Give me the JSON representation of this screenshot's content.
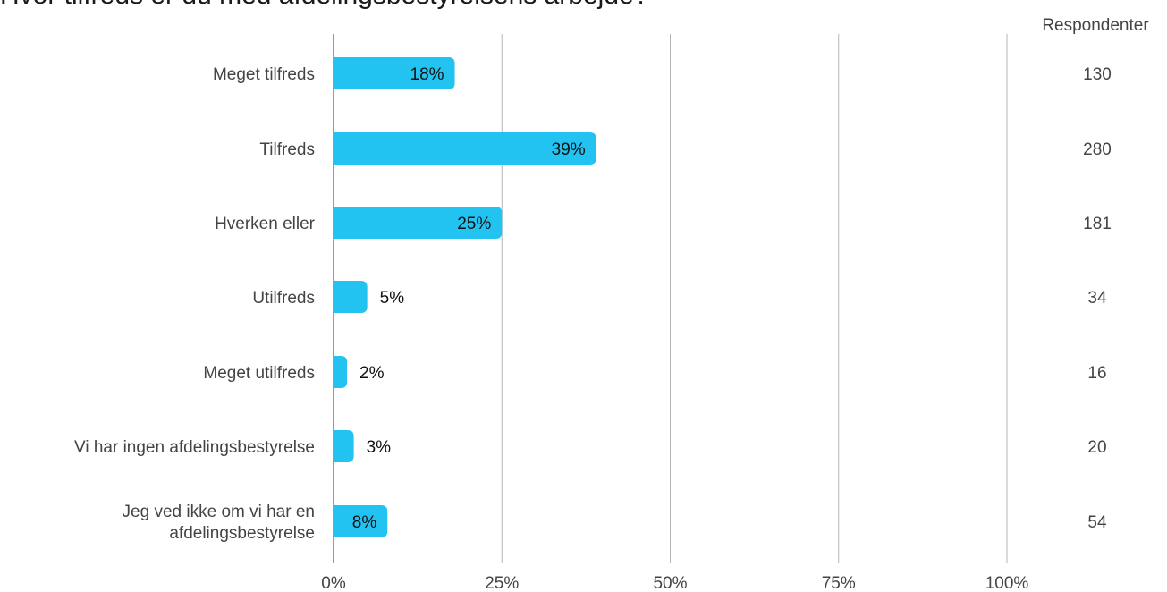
{
  "chart_data": {
    "type": "bar",
    "orientation": "horizontal",
    "title": "Hvor tilfreds er du med afdelingsbestyrelsens arbejde?",
    "categories": [
      [
        "Meget tilfreds"
      ],
      [
        "Tilfreds"
      ],
      [
        "Hverken eller"
      ],
      [
        "Utilfreds"
      ],
      [
        "Meget utilfreds"
      ],
      [
        "Vi har ingen afdelingsbestyrelse"
      ],
      [
        "Jeg ved ikke om vi har en",
        "afdelingsbestyrelse"
      ]
    ],
    "values": [
      18,
      39,
      25,
      5,
      2,
      3,
      8
    ],
    "value_labels": [
      "18%",
      "39%",
      "25%",
      "5%",
      "2%",
      "3%",
      "8%"
    ],
    "respondents_header": "Respondenter",
    "respondents": [
      "130",
      "280",
      "181",
      "34",
      "16",
      "20",
      "54"
    ],
    "xlim": [
      0,
      100
    ],
    "xticks": [
      0,
      25,
      50,
      75,
      100
    ],
    "xtick_labels": [
      "0%",
      "25%",
      "50%",
      "75%",
      "100%"
    ],
    "grid": true,
    "bar_color": "#22c3f0",
    "grid_color": "#b5b5b5",
    "axis_color": "#9a9a9a"
  }
}
